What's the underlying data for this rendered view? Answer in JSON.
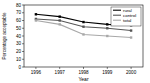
{
  "chart_data": {
    "type": "line",
    "x_label": "Year",
    "y_label": "Percentage acceptable",
    "categories": [
      "1996",
      "1997",
      "1998",
      "1999",
      "2000"
    ],
    "series": [
      {
        "name": "rural",
        "color": "#000000",
        "values": [
          68,
          65,
          58,
          55,
          54
        ]
      },
      {
        "name": "control",
        "color": "#555555",
        "values": [
          62,
          60,
          52,
          50,
          47
        ]
      },
      {
        "name": "total",
        "color": "#a8a8a8",
        "values": [
          60,
          55,
          42,
          40,
          38
        ]
      }
    ],
    "ylim": [
      0,
      80
    ],
    "yticks": [
      0,
      10,
      20,
      30,
      40,
      50,
      60,
      70,
      80
    ],
    "legend": "upper right",
    "marker": "square",
    "grid": false
  }
}
